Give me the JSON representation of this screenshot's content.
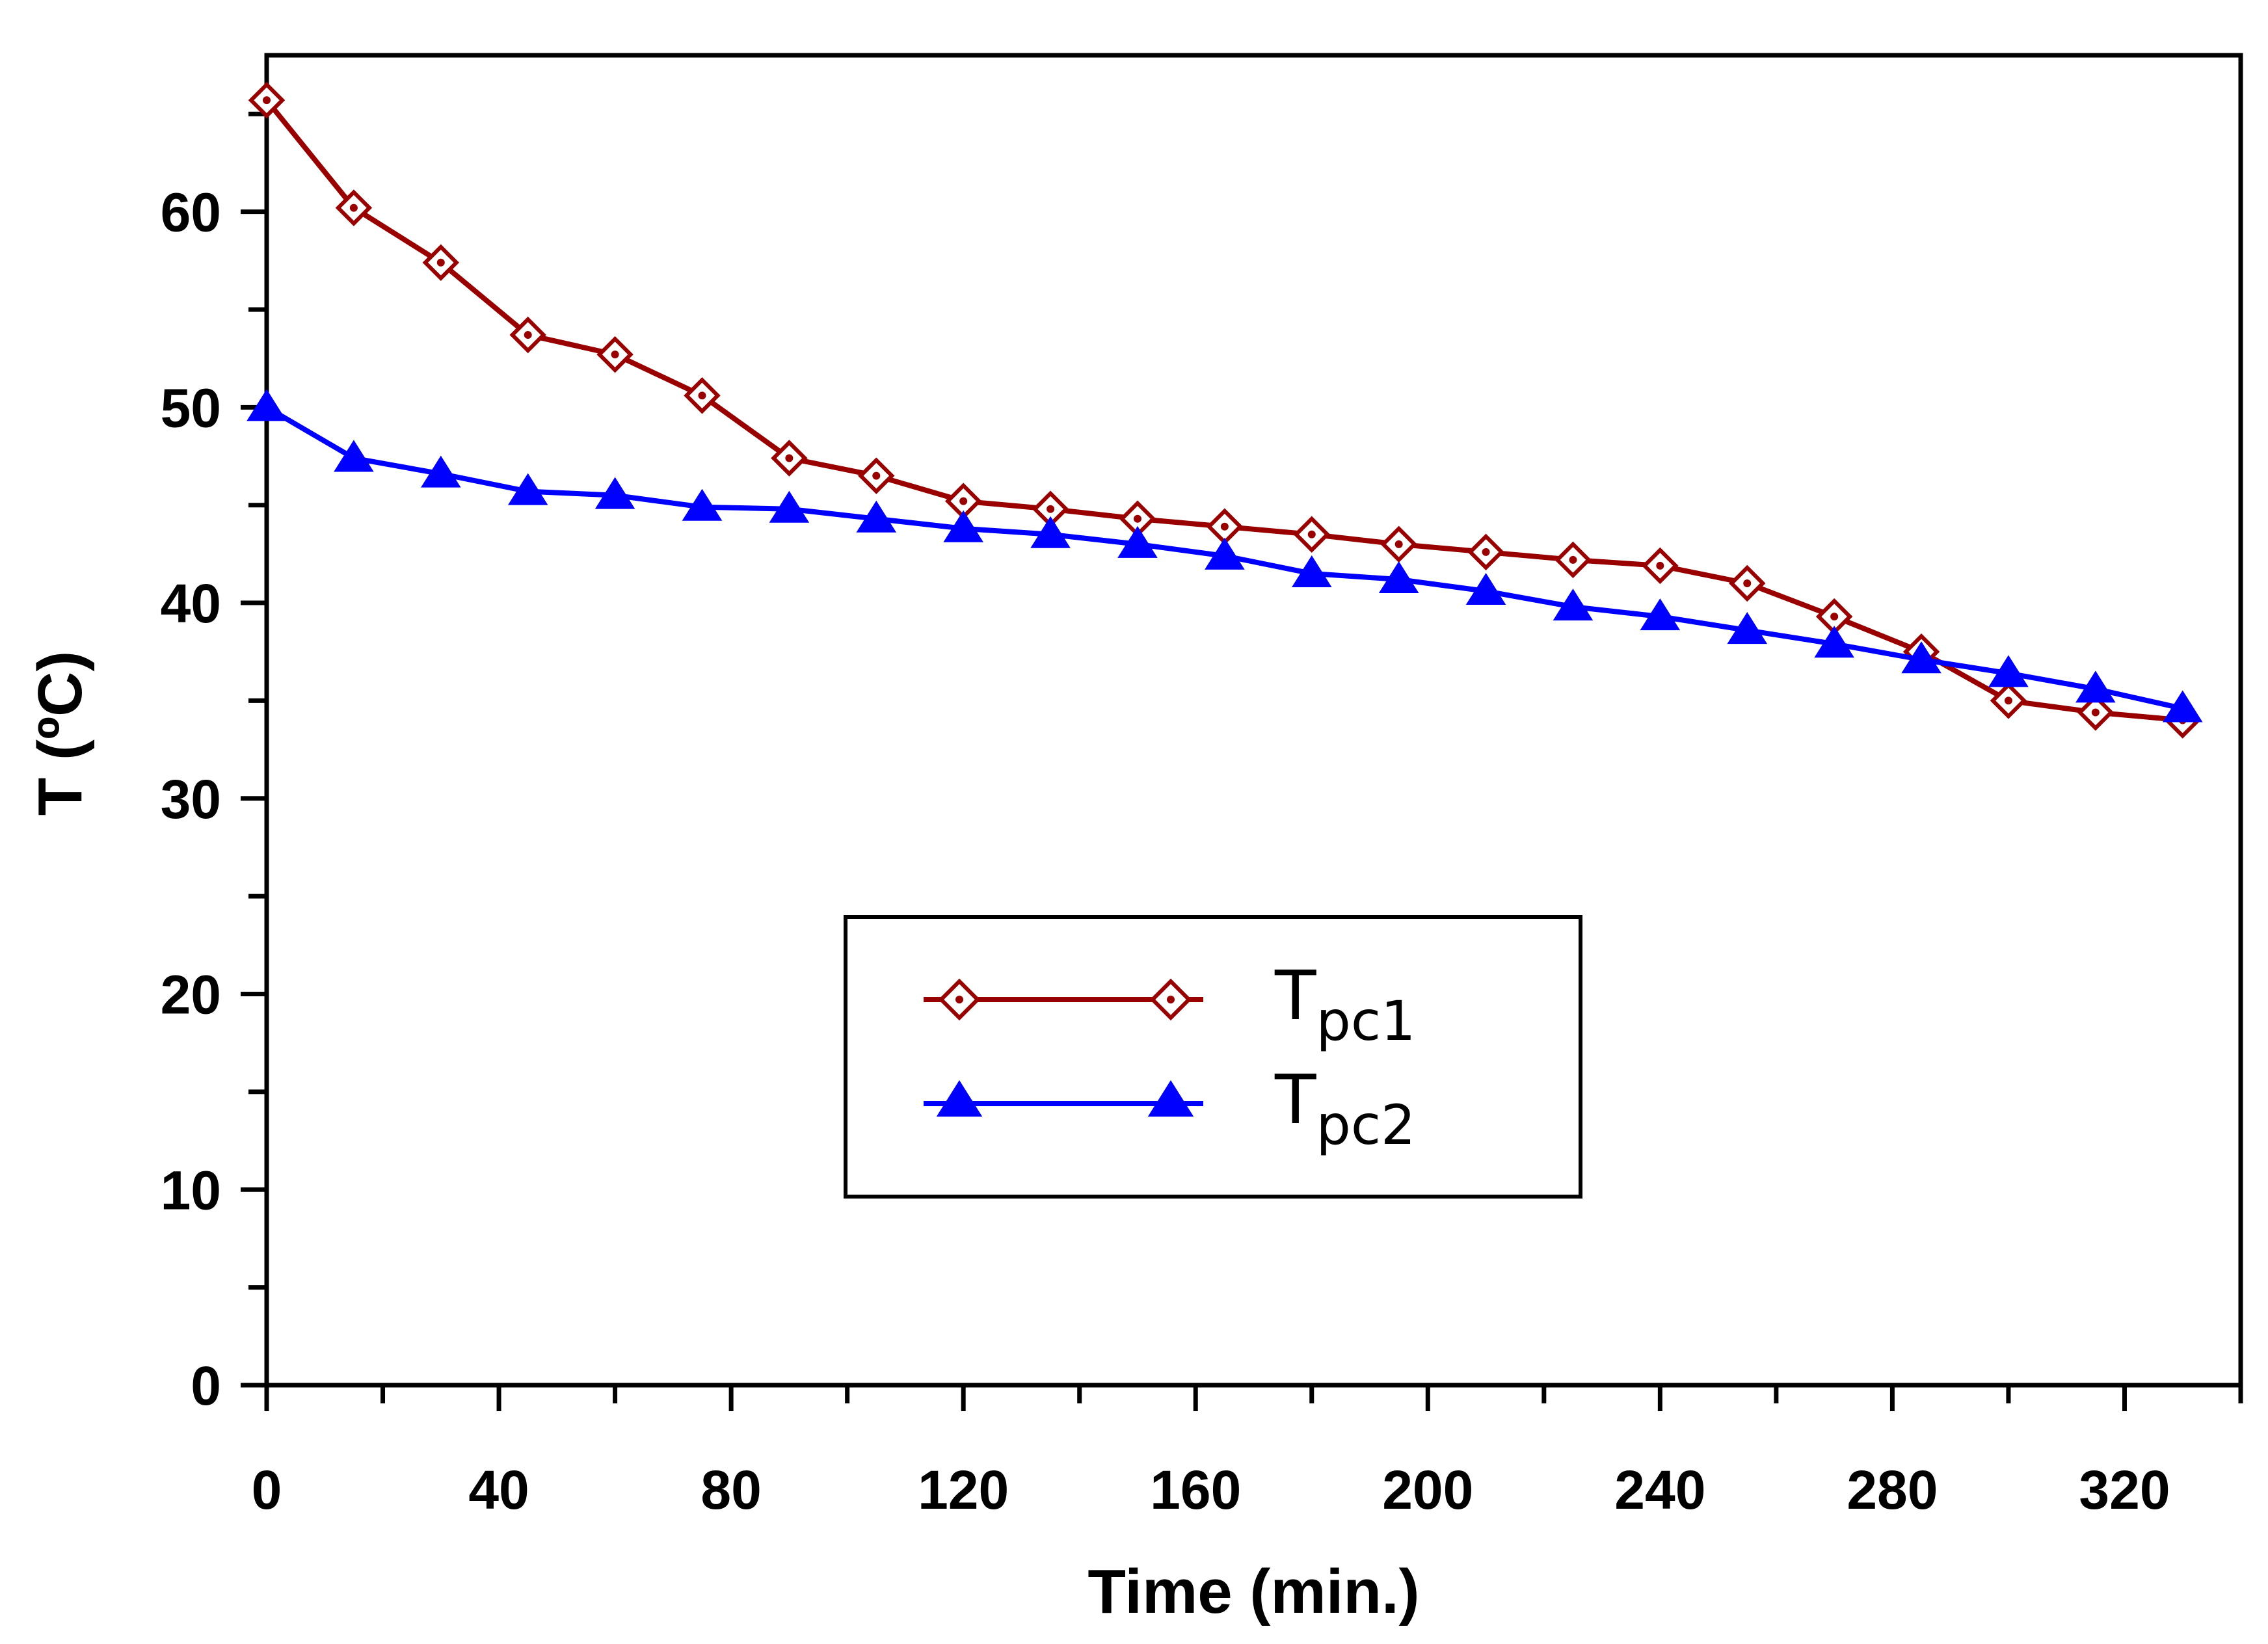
{
  "chart_data": {
    "type": "line",
    "title": "",
    "xlabel": "Time (min.)",
    "ylabel": "T (ºC)",
    "xlim": [
      0,
      340
    ],
    "ylim": [
      0,
      68
    ],
    "x_ticks": [
      0,
      40,
      80,
      120,
      160,
      200,
      240,
      280,
      320
    ],
    "x_tick_labels": [
      "0",
      "40",
      "80",
      "120",
      "160",
      "200",
      "240",
      "280",
      "320"
    ],
    "y_ticks": [
      0,
      10,
      20,
      30,
      40,
      50,
      60
    ],
    "y_tick_labels": [
      "0",
      "10",
      "20",
      "30",
      "40",
      "50",
      "60"
    ],
    "legend_position": "center",
    "x": [
      0,
      15,
      30,
      45,
      60,
      75,
      90,
      105,
      120,
      135,
      150,
      165,
      180,
      195,
      210,
      225,
      240,
      255,
      270,
      285,
      300,
      315,
      330
    ],
    "series": [
      {
        "name": "Tpc1",
        "legend_main": "T",
        "legend_sub": "pc1",
        "color": "#990000",
        "marker": "diamond-open",
        "values": [
          65.7,
          60.2,
          57.4,
          53.7,
          52.7,
          50.6,
          47.4,
          46.5,
          45.2,
          44.8,
          44.3,
          43.9,
          43.5,
          43.0,
          42.6,
          42.2,
          41.9,
          41.0,
          39.3,
          37.5,
          35.0,
          34.4,
          34.0
        ]
      },
      {
        "name": "Tpc2",
        "legend_main": "T",
        "legend_sub": "pc2",
        "color": "#0000ff",
        "marker": "triangle-filled",
        "values": [
          50.0,
          47.4,
          46.6,
          45.7,
          45.5,
          44.9,
          44.8,
          44.3,
          43.8,
          43.5,
          43.0,
          42.4,
          41.5,
          41.2,
          40.6,
          39.8,
          39.3,
          38.6,
          37.9,
          37.1,
          36.4,
          35.6,
          34.6
        ]
      }
    ]
  }
}
